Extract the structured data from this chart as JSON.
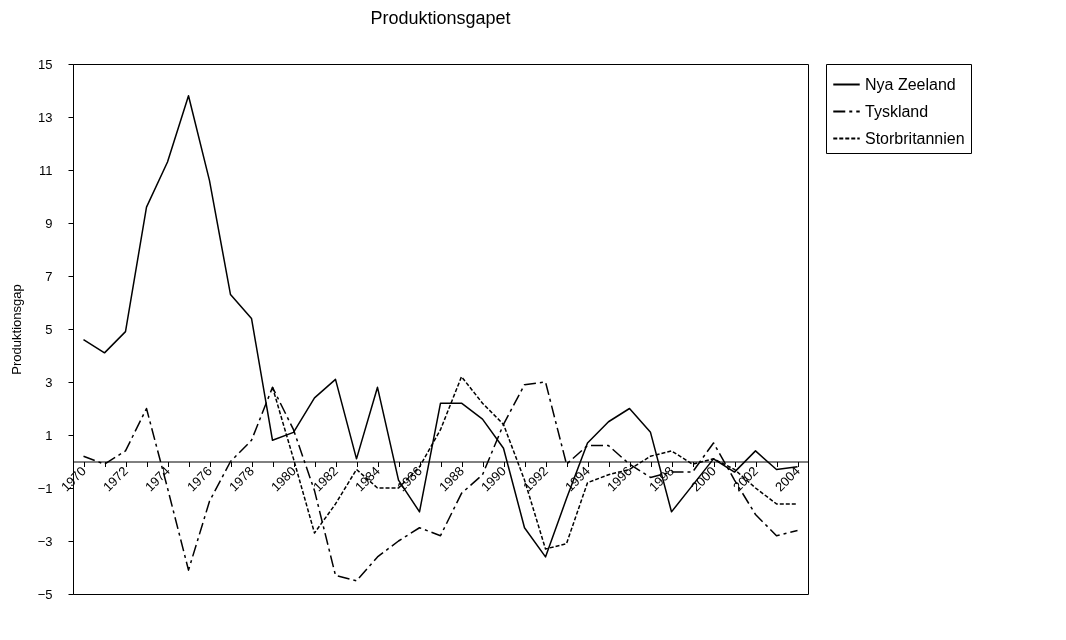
{
  "chart_data": {
    "type": "line",
    "title": "Produktionsgapet",
    "ylabel": "Produktionsgap",
    "categories": [
      "1970",
      null,
      "1972",
      null,
      "1974",
      null,
      "1976",
      null,
      "1978",
      null,
      "1980",
      null,
      "1982",
      null,
      "1984",
      null,
      "1986",
      null,
      "1988",
      null,
      "1990",
      null,
      "1992",
      null,
      "1994",
      null,
      "1996",
      null,
      "1998",
      null,
      "2000",
      null,
      "2002",
      null,
      "2004"
    ],
    "series": [
      {
        "name": "Nya Zeeland",
        "color": "#000000",
        "line_style": "solid",
        "values": [
          4.6,
          4.1,
          4.9,
          9.6,
          11.3,
          13.8,
          10.6,
          6.3,
          5.4,
          0.8,
          1.1,
          2.4,
          3.1,
          0.1,
          2.8,
          -0.7,
          -1.9,
          2.2,
          2.2,
          1.6,
          0.5,
          -2.5,
          -3.6,
          -1.4,
          0.7,
          1.5,
          2.0,
          1.1,
          -1.9,
          -0.9,
          0.1,
          -0.4,
          0.4,
          -0.3,
          -0.2
        ]
      },
      {
        "name": "Tyskland",
        "color": "#000000",
        "line_style": "dashed",
        "values": [
          0.2,
          -0.1,
          0.4,
          2.0,
          -1.0,
          -4.1,
          -1.5,
          0.0,
          0.8,
          2.8,
          1.2,
          -1.1,
          -4.3,
          -4.5,
          -3.6,
          -3.0,
          -2.5,
          -2.8,
          -1.2,
          -0.5,
          1.4,
          2.9,
          3.0,
          -0.1,
          0.6,
          0.6,
          -0.1,
          -0.6,
          -0.4,
          -0.4,
          0.7,
          -0.7,
          -2.0,
          -2.8,
          -2.6
        ]
      },
      {
        "name": "Storbritannien",
        "color": "#000000",
        "line_style": "dotted",
        "values": [
          null,
          null,
          null,
          null,
          null,
          null,
          null,
          null,
          null,
          2.8,
          0.1,
          -2.7,
          -1.6,
          -0.3,
          -1.0,
          -1.0,
          -0.2,
          1.2,
          3.2,
          2.2,
          1.4,
          -0.7,
          -3.3,
          -3.1,
          -0.8,
          -0.5,
          -0.3,
          0.2,
          0.4,
          -0.1,
          0.1,
          -0.3,
          -1.0,
          -1.6,
          -1.6
        ]
      }
    ],
    "ylim": [
      -5,
      15
    ],
    "yticks": [
      -5,
      -3,
      -1,
      1,
      3,
      5,
      7,
      9,
      11,
      13,
      15
    ],
    "grid": false,
    "legend": "right"
  }
}
